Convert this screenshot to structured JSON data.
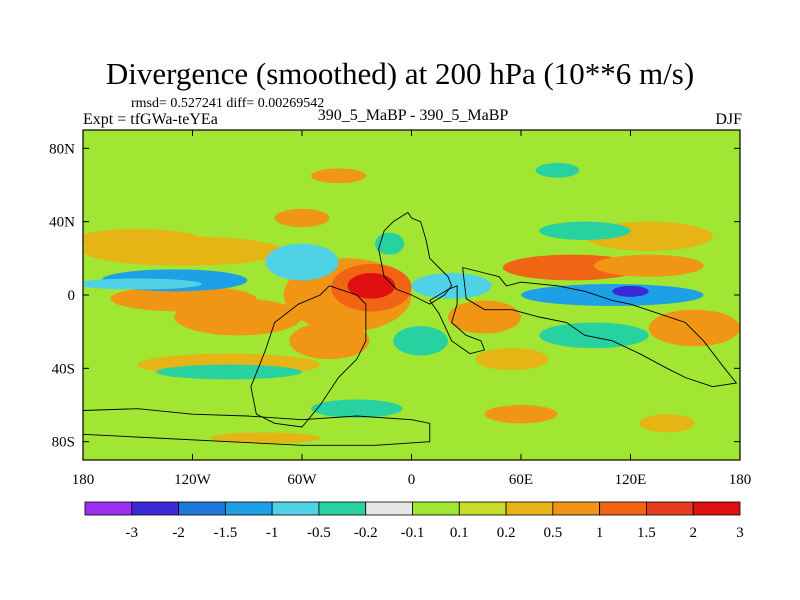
{
  "header": {
    "title": "Divergence (smoothed) at 200 hPa (10**6 m/s)",
    "stats": "rmsd= 0.527241 diff= 0.00269542",
    "experiment": "Expt = tfGWa-teYEa",
    "comparison": "390_5_MaBP - 390_5_MaBP",
    "season": "DJF"
  },
  "chart_data": {
    "type": "heatmap",
    "title": "Divergence (smoothed) at 200 hPa (10**6 m/s)",
    "xlabel": "",
    "ylabel": "",
    "xlim": [
      -180,
      180
    ],
    "ylim": [
      -90,
      90
    ],
    "x_ticks": [
      {
        "value": -180,
        "label": "180"
      },
      {
        "value": -120,
        "label": "120W"
      },
      {
        "value": -60,
        "label": "60W"
      },
      {
        "value": 0,
        "label": "0"
      },
      {
        "value": 60,
        "label": "60E"
      },
      {
        "value": 120,
        "label": "120E"
      },
      {
        "value": 180,
        "label": "180"
      }
    ],
    "y_ticks": [
      {
        "value": 80,
        "label": "80N"
      },
      {
        "value": 40,
        "label": "40N"
      },
      {
        "value": 0,
        "label": "0"
      },
      {
        "value": -40,
        "label": "40S"
      },
      {
        "value": -80,
        "label": "80S"
      }
    ],
    "colorbar": {
      "levels": [
        "-3",
        "-2",
        "-1.5",
        "-1",
        "-0.5",
        "-0.2",
        "-0.1",
        "0.1",
        "0.2",
        "0.5",
        "1",
        "1.5",
        "2",
        "3"
      ],
      "colors": [
        "#9b30f0",
        "#3c28d8",
        "#1e78dc",
        "#1ea0e6",
        "#50d2e6",
        "#28d2a0",
        "#e6e6e6",
        "#a0e632",
        "#c8dc28",
        "#e6b414",
        "#f09614",
        "#f06414",
        "#e63c1e",
        "#e01010"
      ]
    },
    "field_blobs": [
      {
        "lon": -22,
        "lat": 5,
        "rlon": 13,
        "rlat": 7,
        "value": 3
      },
      {
        "lon": -22,
        "lat": 4,
        "rlon": 22,
        "rlat": 13,
        "value": 1.2
      },
      {
        "lon": -35,
        "lat": 0,
        "rlon": 35,
        "rlat": 20,
        "value": 0.5
      },
      {
        "lon": -125,
        "lat": -2,
        "rlon": 40,
        "rlat": 7,
        "value": 0.9
      },
      {
        "lon": -130,
        "lat": 8,
        "rlon": 40,
        "rlat": 6,
        "value": -1.1
      },
      {
        "lon": -150,
        "lat": 6,
        "rlon": 35,
        "rlat": 3,
        "value": -0.6
      },
      {
        "lon": -95,
        "lat": -12,
        "rlon": 35,
        "rlat": 10,
        "value": 0.7
      },
      {
        "lon": -125,
        "lat": 24,
        "rlon": 55,
        "rlat": 8,
        "value": 0.45
      },
      {
        "lon": -150,
        "lat": 30,
        "rlon": 35,
        "rlat": 6,
        "value": 0.3
      },
      {
        "lon": -60,
        "lat": 18,
        "rlon": 20,
        "rlat": 10,
        "value": -0.8
      },
      {
        "lon": 22,
        "lat": 5,
        "rlon": 22,
        "rlat": 7,
        "value": -0.9
      },
      {
        "lon": 110,
        "lat": 0,
        "rlon": 50,
        "rlat": 6,
        "value": -1.1
      },
      {
        "lon": 120,
        "lat": 2,
        "rlon": 10,
        "rlat": 3,
        "value": -2.2
      },
      {
        "lon": 88,
        "lat": 15,
        "rlon": 38,
        "rlat": 7,
        "value": 1.1
      },
      {
        "lon": 130,
        "lat": 16,
        "rlon": 30,
        "rlat": 6,
        "value": 0.9
      },
      {
        "lon": 130,
        "lat": 32,
        "rlon": 35,
        "rlat": 8,
        "value": 0.4
      },
      {
        "lon": 40,
        "lat": -12,
        "rlon": 20,
        "rlat": 9,
        "value": 0.8
      },
      {
        "lon": 155,
        "lat": -18,
        "rlon": 25,
        "rlat": 10,
        "value": 0.5
      },
      {
        "lon": 100,
        "lat": -22,
        "rlon": 30,
        "rlat": 7,
        "value": -0.5
      },
      {
        "lon": -45,
        "lat": -25,
        "rlon": 22,
        "rlat": 10,
        "value": 0.6
      },
      {
        "lon": 5,
        "lat": -25,
        "rlon": 15,
        "rlat": 8,
        "value": -0.5
      },
      {
        "lon": -100,
        "lat": -38,
        "rlon": 50,
        "rlat": 6,
        "value": 0.3
      },
      {
        "lon": -100,
        "lat": -42,
        "rlon": 40,
        "rlat": 4,
        "value": -0.4
      },
      {
        "lon": 55,
        "lat": -35,
        "rlon": 20,
        "rlat": 6,
        "value": 0.4
      },
      {
        "lon": -60,
        "lat": 42,
        "rlon": 15,
        "rlat": 5,
        "value": 0.5
      },
      {
        "lon": -12,
        "lat": 28,
        "rlon": 8,
        "rlat": 6,
        "value": -0.4
      },
      {
        "lon": 95,
        "lat": 35,
        "rlon": 25,
        "rlat": 5,
        "value": -0.3
      },
      {
        "lon": -40,
        "lat": 65,
        "rlon": 15,
        "rlat": 4,
        "value": 0.5
      },
      {
        "lon": 80,
        "lat": 68,
        "rlon": 12,
        "rlat": 4,
        "value": -0.4
      },
      {
        "lon": -30,
        "lat": -62,
        "rlon": 25,
        "rlat": 5,
        "value": -0.4
      },
      {
        "lon": 60,
        "lat": -65,
        "rlon": 20,
        "rlat": 5,
        "value": 0.5
      },
      {
        "lon": -80,
        "lat": -78,
        "rlon": 30,
        "rlat": 3,
        "value": 0.4
      },
      {
        "lon": 140,
        "lat": -70,
        "rlon": 15,
        "rlat": 5,
        "value": 0.4
      }
    ],
    "land_outlines": [
      {
        "name": "north-america-outline",
        "points": [
          [
            -10,
            40
          ],
          [
            -2,
            45
          ],
          [
            0,
            42
          ],
          [
            5,
            40
          ],
          [
            8,
            30
          ],
          [
            10,
            20
          ],
          [
            15,
            15
          ],
          [
            20,
            10
          ],
          [
            22,
            5
          ],
          [
            18,
            0
          ],
          [
            10,
            -5
          ],
          [
            0,
            0
          ],
          [
            -8,
            3
          ],
          [
            -15,
            10
          ],
          [
            -18,
            25
          ],
          [
            -15,
            35
          ],
          [
            -10,
            40
          ]
        ]
      },
      {
        "name": "south-america-outline",
        "points": [
          [
            -45,
            5
          ],
          [
            -30,
            0
          ],
          [
            -25,
            -5
          ],
          [
            -25,
            -25
          ],
          [
            -30,
            -35
          ],
          [
            -40,
            -45
          ],
          [
            -50,
            -60
          ],
          [
            -60,
            -72
          ],
          [
            -75,
            -70
          ],
          [
            -85,
            -65
          ],
          [
            -88,
            -50
          ],
          [
            -80,
            -30
          ],
          [
            -75,
            -15
          ],
          [
            -62,
            -5
          ],
          [
            -50,
            0
          ],
          [
            -45,
            5
          ]
        ]
      },
      {
        "name": "africa-outline",
        "points": [
          [
            15,
            0
          ],
          [
            20,
            3
          ],
          [
            25,
            5
          ],
          [
            25,
            -5
          ],
          [
            22,
            -15
          ],
          [
            30,
            -22
          ],
          [
            38,
            -25
          ],
          [
            40,
            -30
          ],
          [
            32,
            -32
          ],
          [
            22,
            -25
          ],
          [
            15,
            -10
          ],
          [
            10,
            -3
          ],
          [
            15,
            0
          ]
        ]
      },
      {
        "name": "eurasia-outline",
        "points": [
          [
            28,
            15
          ],
          [
            40,
            12
          ],
          [
            48,
            10
          ],
          [
            52,
            5
          ],
          [
            60,
            7
          ],
          [
            80,
            5
          ],
          [
            95,
            2
          ],
          [
            110,
            -3
          ],
          [
            120,
            -5
          ],
          [
            135,
            -10
          ],
          [
            150,
            -15
          ],
          [
            160,
            -25
          ],
          [
            170,
            -38
          ],
          [
            178,
            -48
          ],
          [
            165,
            -50
          ],
          [
            150,
            -45
          ],
          [
            140,
            -40
          ],
          [
            125,
            -32
          ],
          [
            110,
            -25
          ],
          [
            95,
            -22
          ],
          [
            85,
            -15
          ],
          [
            70,
            -12
          ],
          [
            55,
            -8
          ],
          [
            40,
            -8
          ],
          [
            30,
            -2
          ],
          [
            28,
            15
          ]
        ]
      },
      {
        "name": "antarctica-outline",
        "points": [
          [
            -180,
            -63
          ],
          [
            -150,
            -62
          ],
          [
            -120,
            -65
          ],
          [
            -90,
            -66
          ],
          [
            -60,
            -68
          ],
          [
            -30,
            -66
          ],
          [
            0,
            -68
          ],
          [
            10,
            -70
          ],
          [
            10,
            -80
          ],
          [
            -20,
            -82
          ],
          [
            -60,
            -82
          ],
          [
            -100,
            -80
          ],
          [
            -140,
            -78
          ],
          [
            -180,
            -76
          ]
        ]
      }
    ]
  }
}
